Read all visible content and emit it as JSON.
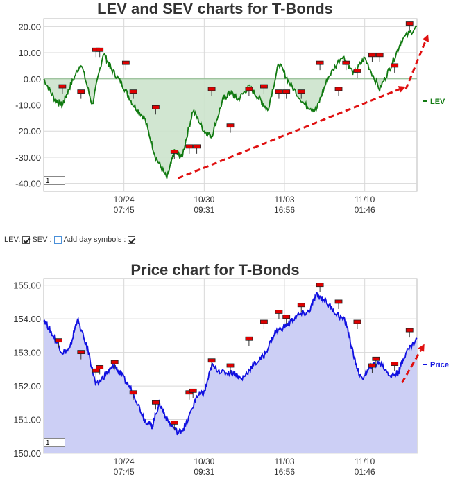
{
  "chart_data": [
    {
      "type": "line",
      "title": "LEV and SEV charts for T-Bonds",
      "xlabel": "",
      "ylabel": "",
      "ylim": [
        -43,
        23
      ],
      "yticks": [
        "20.00",
        "10.00",
        "0.00",
        "-10.00",
        "-20.00",
        "-30.00",
        "-40.00"
      ],
      "xticks": [
        [
          "10/24",
          "07:45"
        ],
        [
          "10/30",
          "09:31"
        ],
        [
          "11/03",
          "16:56"
        ],
        [
          "11/10",
          "01:46"
        ]
      ],
      "legend": "right",
      "grid": true,
      "series": [
        {
          "name": "LEV",
          "color": "#117a11",
          "x": [
            0,
            0.03,
            0.05,
            0.07,
            0.1,
            0.13,
            0.16,
            0.18,
            0.21,
            0.24,
            0.27,
            0.3,
            0.33,
            0.35,
            0.37,
            0.4,
            0.43,
            0.45,
            0.48,
            0.5,
            0.52,
            0.55,
            0.58,
            0.6,
            0.63,
            0.66,
            0.7,
            0.73,
            0.76,
            0.8,
            0.83,
            0.86,
            0.9,
            0.93,
            0.96,
            1.0
          ],
          "values": [
            0,
            -8,
            -10,
            -3,
            6,
            -10,
            10,
            4,
            -2,
            -10,
            -15,
            -30,
            -38,
            -28,
            -30,
            -12,
            -20,
            -22,
            -8,
            -5,
            -8,
            -3,
            -8,
            -12,
            6,
            -2,
            -10,
            -12,
            0,
            9,
            2,
            8,
            -4,
            5,
            15,
            20
          ]
        }
      ],
      "markers": [
        {
          "x": 0.05,
          "value": -3
        },
        {
          "x": 0.1,
          "value": -5
        },
        {
          "x": 0.14,
          "value": 11
        },
        {
          "x": 0.15,
          "value": 11
        },
        {
          "x": 0.22,
          "value": 6
        },
        {
          "x": 0.24,
          "value": -5
        },
        {
          "x": 0.3,
          "value": -11
        },
        {
          "x": 0.35,
          "value": -28
        },
        {
          "x": 0.39,
          "value": -26
        },
        {
          "x": 0.41,
          "value": -26
        },
        {
          "x": 0.45,
          "value": -4
        },
        {
          "x": 0.5,
          "value": -18
        },
        {
          "x": 0.55,
          "value": -4
        },
        {
          "x": 0.59,
          "value": -3
        },
        {
          "x": 0.63,
          "value": -5
        },
        {
          "x": 0.65,
          "value": -5
        },
        {
          "x": 0.69,
          "value": -5
        },
        {
          "x": 0.74,
          "value": 6
        },
        {
          "x": 0.79,
          "value": -4
        },
        {
          "x": 0.81,
          "value": 6
        },
        {
          "x": 0.84,
          "value": 3
        },
        {
          "x": 0.88,
          "value": 9
        },
        {
          "x": 0.9,
          "value": 9
        },
        {
          "x": 0.94,
          "value": 5
        },
        {
          "x": 0.98,
          "value": 21
        }
      ],
      "trend_arrows": [
        {
          "from": [
            0.36,
            -38
          ],
          "to": [
            0.97,
            -3
          ]
        },
        {
          "from": [
            0.97,
            -4
          ],
          "to": [
            1.03,
            17
          ]
        }
      ],
      "input_value": "1"
    },
    {
      "type": "area",
      "title": "Price chart for T-Bonds",
      "xlabel": "",
      "ylabel": "",
      "ylim": [
        150,
        155.2
      ],
      "yticks": [
        "155.00",
        "154.00",
        "153.00",
        "152.00",
        "151.00",
        "150.00"
      ],
      "xticks": [
        [
          "10/24",
          "07:45"
        ],
        [
          "10/30",
          "09:31"
        ],
        [
          "11/03",
          "16:56"
        ],
        [
          "11/10",
          "01:46"
        ]
      ],
      "legend": "right",
      "grid": true,
      "series": [
        {
          "name": "Price",
          "color": "#1010e0",
          "fill": "#cccff5",
          "x": [
            0,
            0.02,
            0.05,
            0.07,
            0.09,
            0.12,
            0.14,
            0.17,
            0.19,
            0.21,
            0.24,
            0.27,
            0.29,
            0.31,
            0.33,
            0.36,
            0.38,
            0.41,
            0.43,
            0.45,
            0.48,
            0.51,
            0.53,
            0.56,
            0.59,
            0.62,
            0.65,
            0.68,
            0.71,
            0.73,
            0.75,
            0.78,
            0.81,
            0.83,
            0.85,
            0.88,
            0.9,
            0.93,
            0.95,
            0.97,
            1.0
          ],
          "values": [
            154.0,
            153.6,
            153.0,
            153.1,
            154.0,
            153.0,
            152.0,
            152.4,
            152.6,
            152.3,
            151.8,
            151.0,
            150.8,
            151.5,
            151.0,
            150.6,
            150.8,
            151.7,
            151.8,
            152.6,
            152.4,
            152.4,
            152.2,
            152.6,
            152.9,
            153.6,
            153.8,
            154.1,
            154.2,
            154.7,
            154.6,
            154.2,
            153.9,
            152.9,
            152.2,
            152.6,
            152.7,
            152.3,
            152.4,
            153.0,
            153.4
          ]
        }
      ],
      "markers": [
        {
          "x": 0.04,
          "value": 153.35
        },
        {
          "x": 0.1,
          "value": 153.0
        },
        {
          "x": 0.14,
          "value": 152.45
        },
        {
          "x": 0.15,
          "value": 152.55
        },
        {
          "x": 0.19,
          "value": 152.7
        },
        {
          "x": 0.24,
          "value": 151.8
        },
        {
          "x": 0.3,
          "value": 151.5
        },
        {
          "x": 0.35,
          "value": 150.9
        },
        {
          "x": 0.39,
          "value": 151.8
        },
        {
          "x": 0.4,
          "value": 151.85
        },
        {
          "x": 0.45,
          "value": 152.75
        },
        {
          "x": 0.5,
          "value": 152.6
        },
        {
          "x": 0.55,
          "value": 153.4
        },
        {
          "x": 0.59,
          "value": 153.9
        },
        {
          "x": 0.63,
          "value": 154.2
        },
        {
          "x": 0.65,
          "value": 154.05
        },
        {
          "x": 0.69,
          "value": 154.4
        },
        {
          "x": 0.74,
          "value": 155.0
        },
        {
          "x": 0.79,
          "value": 154.5
        },
        {
          "x": 0.84,
          "value": 153.9
        },
        {
          "x": 0.88,
          "value": 152.6
        },
        {
          "x": 0.89,
          "value": 152.8
        },
        {
          "x": 0.94,
          "value": 152.65
        },
        {
          "x": 0.98,
          "value": 153.65
        }
      ],
      "trend_arrows": [
        {
          "from": [
            0.96,
            152.1
          ],
          "to": [
            1.02,
            153.25
          ]
        }
      ],
      "input_value": "1"
    }
  ],
  "controls": {
    "lev_label": "LEV:",
    "lev_checked": true,
    "sev_label": "SEV :",
    "sev_checked": false,
    "day_symbols_label": "Add day symbols :",
    "day_symbols_checked": true
  },
  "colors": {
    "lev_line": "#117a11",
    "lev_fill": "#cce3cc",
    "price_line": "#1010e0",
    "price_fill": "#cccff5",
    "marker": "#e00000",
    "arrow": "#e01010",
    "grid": "#d8d8d8"
  }
}
